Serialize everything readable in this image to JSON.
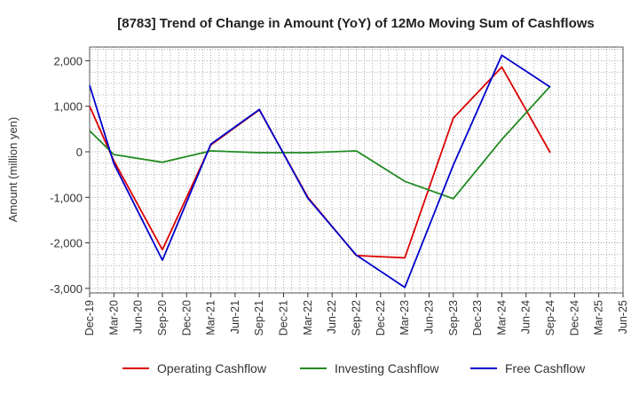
{
  "chart_data": {
    "type": "line",
    "title": "[8783]  Trend of Change in Amount (YoY) of 12Mo Moving Sum of Cashflows",
    "xlabel": "",
    "ylabel": "Amount (million yen)",
    "ylim": [
      -3100,
      2300
    ],
    "yticks": [
      2000,
      1000,
      0,
      -1000,
      -2000,
      -3000
    ],
    "ytick_labels": [
      "2,000",
      "1,000",
      "0",
      "-1,000",
      "-2,000",
      "-3,000"
    ],
    "categories": [
      "Dec-19",
      "Mar-20",
      "Jun-20",
      "Sep-20",
      "Dec-20",
      "Mar-21",
      "Jun-21",
      "Sep-21",
      "Dec-21",
      "Mar-22",
      "Jun-22",
      "Sep-22",
      "Dec-22",
      "Mar-23",
      "Jun-23",
      "Sep-23",
      "Dec-23",
      "Mar-24",
      "Jun-24",
      "Sep-24",
      "Dec-24",
      "Mar-25"
    ],
    "x_tick_labels": [
      "Dec-19",
      "Mar-20",
      "Jun-20",
      "Sep-20",
      "Dec-20",
      "Mar-21",
      "Jun-21",
      "Sep-21",
      "Dec-21",
      "Mar-22",
      "Jun-22",
      "Sep-22",
      "Dec-22",
      "Mar-23",
      "Jun-23",
      "Sep-23",
      "Dec-23",
      "Mar-24",
      "Jun-24",
      "Sep-24",
      "Dec-24",
      "Mar-25",
      "Jun-25"
    ],
    "grid": true,
    "legend_position": "bottom",
    "series": [
      {
        "name": "Operating Cashflow",
        "color": "#dd0000",
        "values": [
          1000,
          -200,
          null,
          -2150,
          null,
          150,
          null,
          920,
          null,
          -1000,
          null,
          -2280,
          null,
          -2330,
          null,
          740,
          null,
          1860,
          null,
          -20,
          null,
          null
        ]
      },
      {
        "name": "Investing Cashflow",
        "color": "#228b22",
        "values": [
          460,
          -60,
          null,
          -230,
          null,
          20,
          null,
          -20,
          null,
          -20,
          null,
          20,
          null,
          -650,
          null,
          -1030,
          null,
          270,
          null,
          1440,
          null,
          null
        ]
      },
      {
        "name": "Free Cashflow",
        "color": "#0000cc",
        "values": [
          1460,
          -260,
          null,
          -2380,
          null,
          170,
          null,
          930,
          null,
          -1020,
          null,
          -2270,
          null,
          -2980,
          null,
          -290,
          null,
          2120,
          null,
          1420,
          null,
          null
        ]
      }
    ]
  }
}
